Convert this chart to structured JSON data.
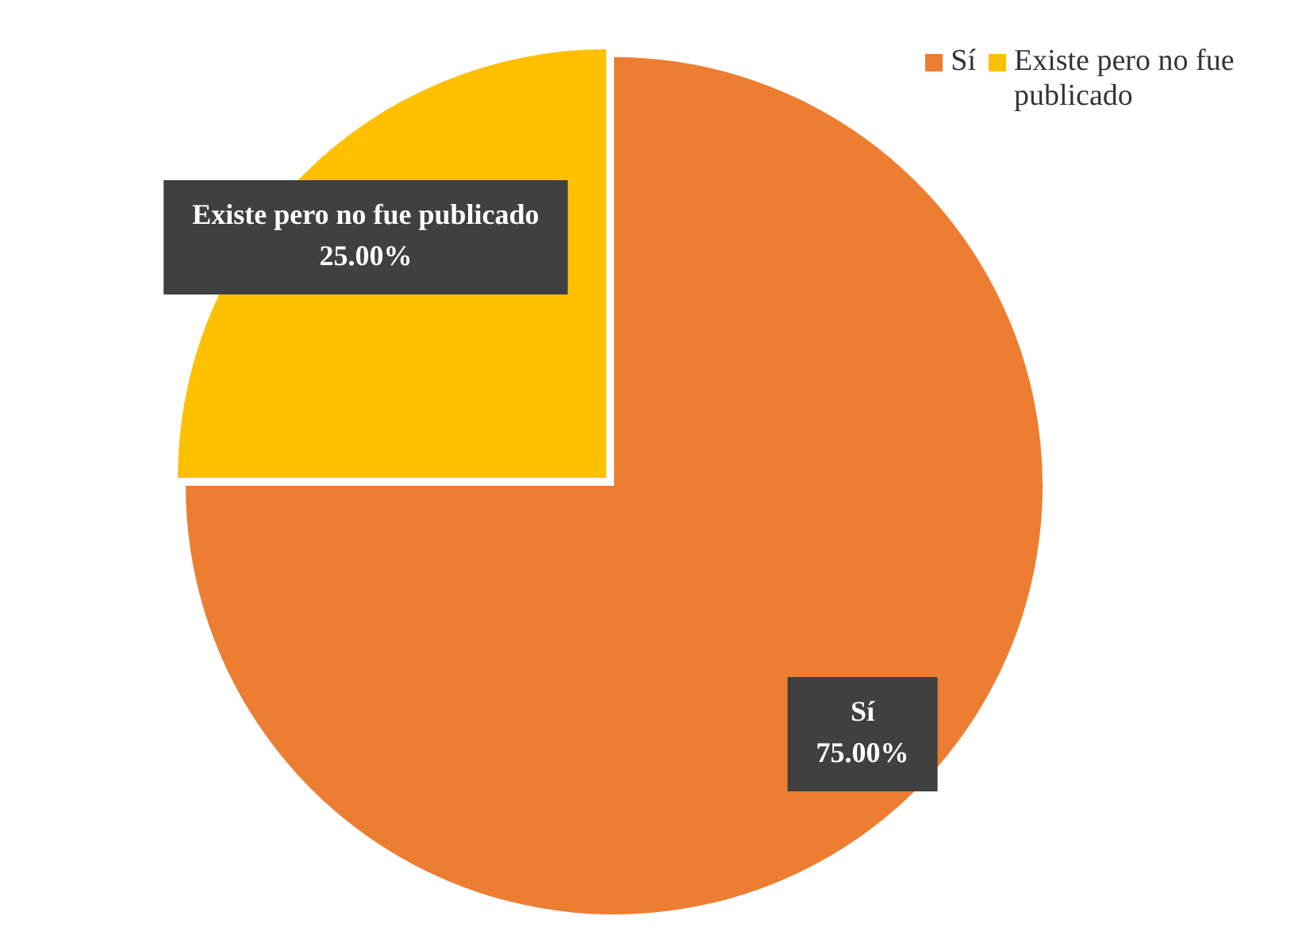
{
  "chart_data": {
    "type": "pie",
    "categories": [
      "Sí",
      "Existe pero no fue publicado"
    ],
    "values": [
      75,
      25
    ],
    "colors": [
      "#ed7d31",
      "#ffc000"
    ],
    "value_labels": [
      "75.00%",
      "25.00%"
    ],
    "legend": "top right"
  }
}
